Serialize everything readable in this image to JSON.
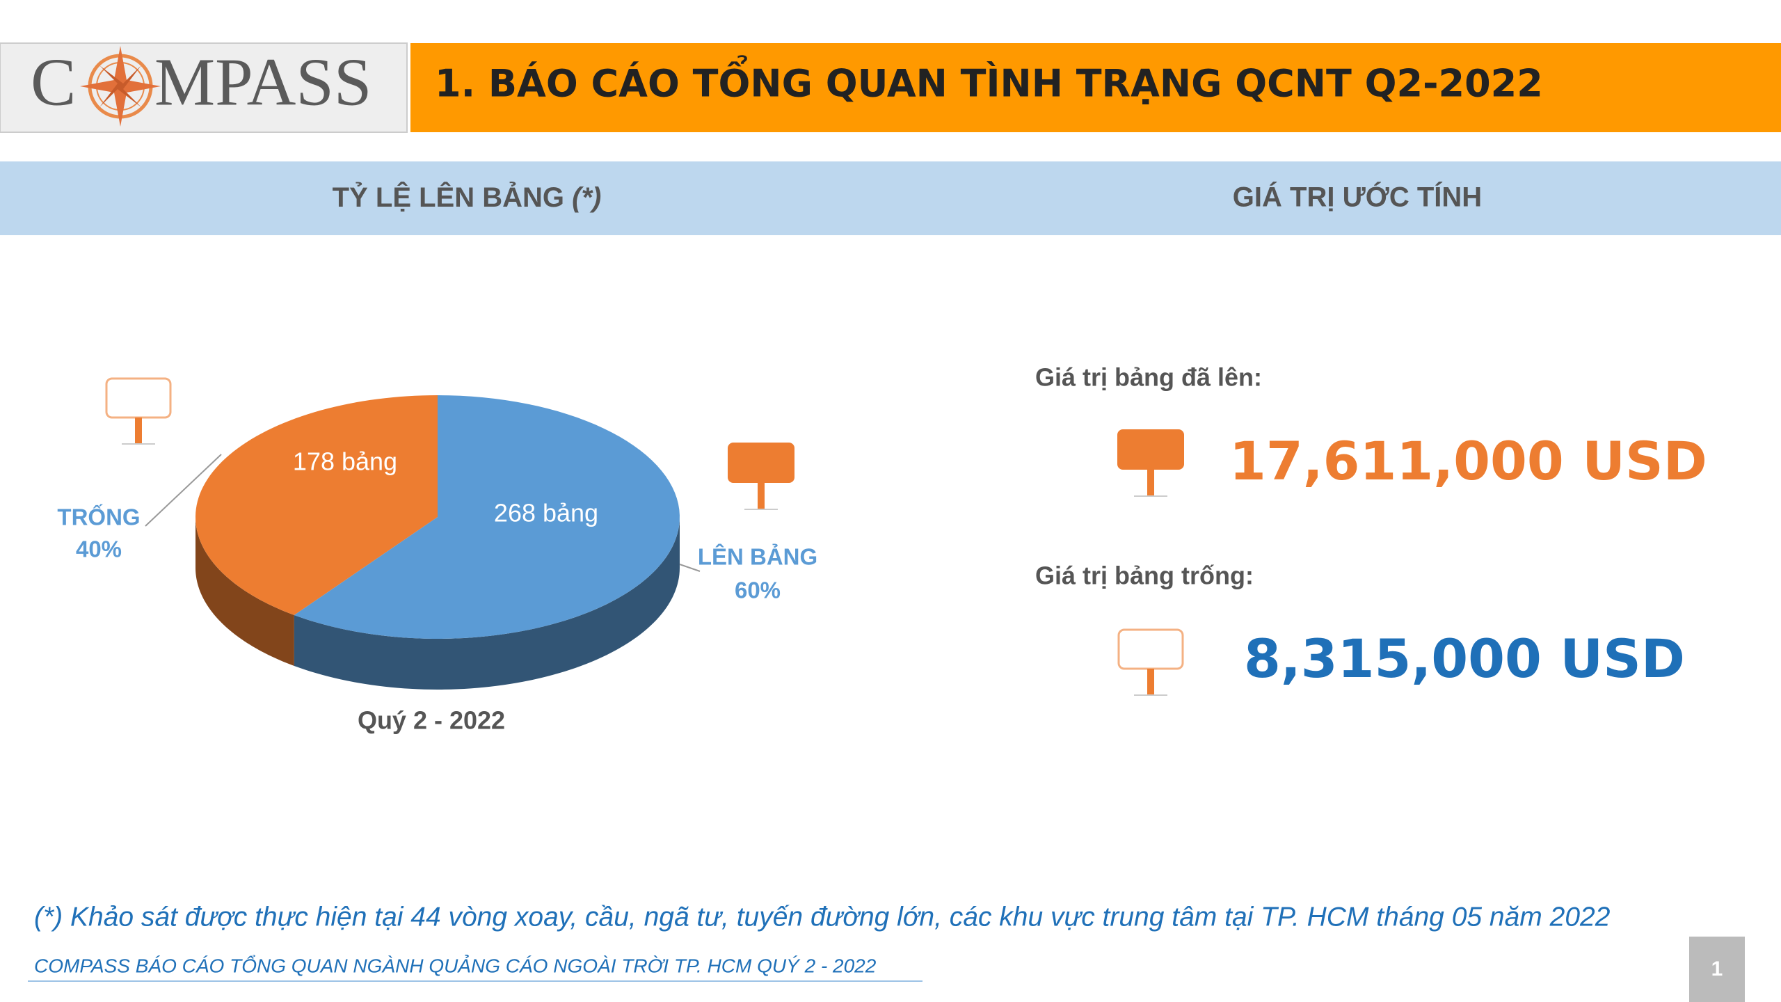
{
  "header": {
    "logo_left": "C",
    "logo_right": "MPASS",
    "title": "1. BÁO CÁO TỔNG QUAN TÌNH TRẠNG QCNT Q2-2022"
  },
  "sections": {
    "left": "TỶ LỆ LÊN BẢNG",
    "left_mark": "(*)",
    "right": "GIÁ TRỊ ƯỚC TÍNH"
  },
  "chart_data": {
    "type": "pie",
    "title": "Quý 2 - 2022",
    "categories": [
      "TRỐNG",
      "LÊN BẢNG"
    ],
    "values": [
      178,
      268
    ],
    "value_labels": [
      "178 bảng",
      "268 bảng"
    ],
    "percent_labels": [
      "40%",
      "60%"
    ],
    "colors": [
      "#ED7D31",
      "#5B9BD5"
    ]
  },
  "estimates": [
    {
      "label": "Giá trị bảng đã lên:",
      "value": "17,611,000  USD",
      "color": "#ED7D31"
    },
    {
      "label": "Giá trị bảng trống:",
      "value": "8,315,000  USD",
      "color": "#1F70B8"
    }
  ],
  "footer": {
    "note": "(*) Khảo sát được thực hiện tại 44 vòng xoay, cầu, ngã tư, tuyến đường lớn, các khu vực trung tâm tại TP. HCM tháng 05 năm 2022",
    "source": "COMPASS BÁO CÁO TỔNG QUAN NGÀNH QUẢNG CÁO NGOÀI TRỜI TP. HCM QUÝ 2 - 2022",
    "page": "1"
  }
}
